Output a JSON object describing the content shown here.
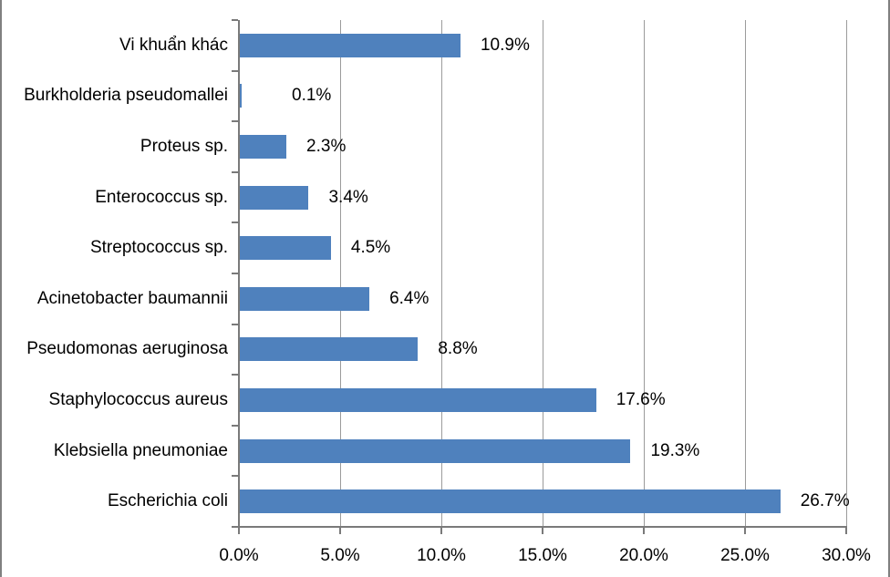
{
  "chart_data": {
    "type": "bar",
    "orientation": "horizontal",
    "title": "",
    "xlabel": "",
    "ylabel": "",
    "categories": [
      "Vi khuẩn khác",
      "Burkholderia pseudomallei",
      "Proteus sp.",
      "Enterococcus sp.",
      "Streptococcus sp.",
      "Acinetobacter baumannii",
      "Pseudomonas aeruginosa",
      "Staphylococcus aureus",
      "Klebsiella pneumoniae",
      "Escherichia coli"
    ],
    "values": [
      10.9,
      0.1,
      2.3,
      3.4,
      4.5,
      6.4,
      8.8,
      17.6,
      19.3,
      26.7
    ],
    "data_labels": [
      "10.9%",
      "0.1%",
      "2.3%",
      "3.4%",
      "4.5%",
      "6.4%",
      "8.8%",
      "17.6%",
      "19.3%",
      "26.7%"
    ],
    "x_tick_labels": [
      "0.0%",
      "5.0%",
      "10.0%",
      "15.0%",
      "20.0%",
      "25.0%",
      "30.0%"
    ],
    "xlim": [
      0,
      30
    ],
    "x_tick_step": 5,
    "grid": "vertical-major-only",
    "legend": "none",
    "colors": {
      "bar": "#4F81BD",
      "gridline": "#9B9B9B",
      "axis": "#7a7a7a",
      "text": "#000000",
      "frame": "#808080"
    }
  }
}
